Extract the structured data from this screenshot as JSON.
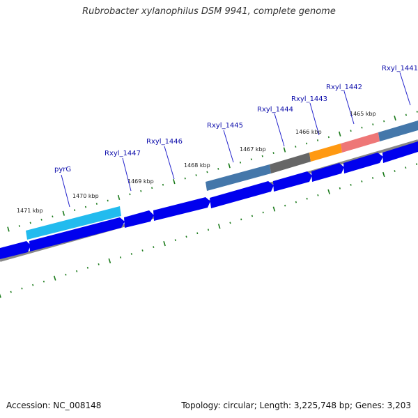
{
  "title": "Rubrobacter xylanophilus DSM 9941, complete genome",
  "accession": "Accession: NC_008148",
  "summary": "Topology: circular; Length: 3,225,748 bp; Genes: 3,203",
  "colors": {
    "forward_gene": "#0000ee",
    "backbone": "#888888",
    "tick": "#1a7a1a",
    "pyrG": "#22bbee",
    "Rxyl_1445": "#4477aa",
    "Rxyl_1444": "#666666",
    "Rxyl_1443": "#ff9911",
    "Rxyl_1442": "#ee7777",
    "Rxyl_1441": "#4477aa"
  },
  "kbp_labels": [
    "1471 kbp",
    "1470 kbp",
    "1469 kbp",
    "1468 kbp",
    "1467 kbp",
    "1466 kbp",
    "1465 kbp"
  ],
  "gene_labels": [
    "pyrG",
    "Rxyl_1447",
    "Rxyl_1446",
    "Rxyl_1445",
    "Rxyl_1444",
    "Rxyl_1443",
    "Rxyl_1442",
    "Rxyl_1441"
  ]
}
